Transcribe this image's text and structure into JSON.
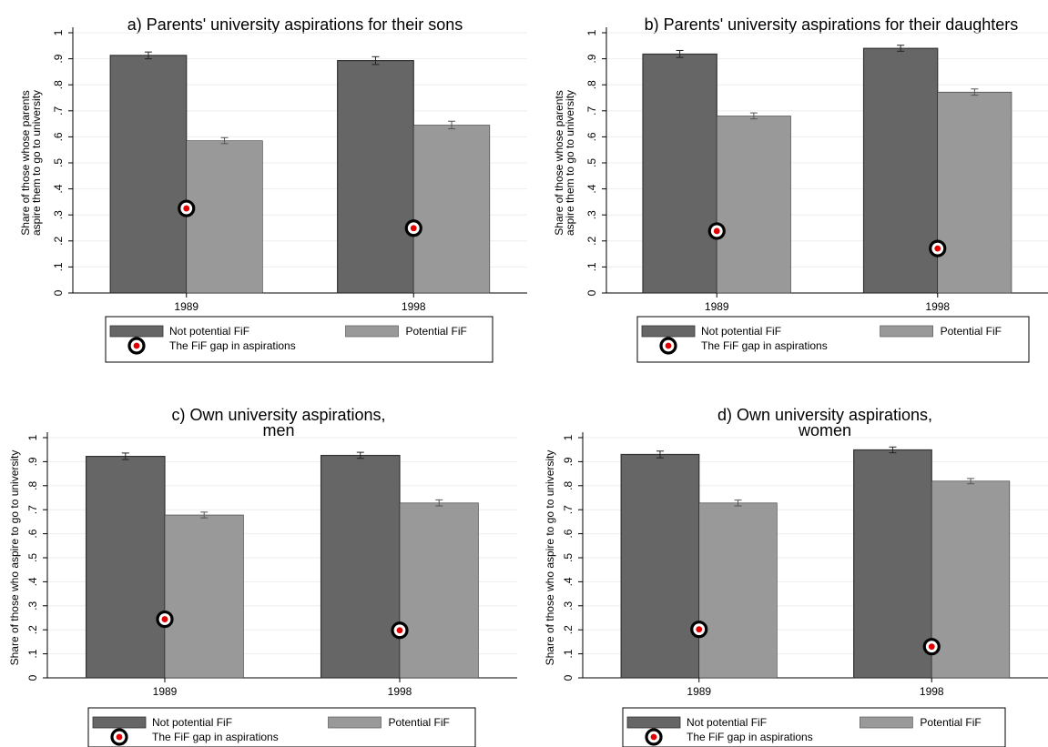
{
  "colors": {
    "not_potential": "#666666",
    "potential": "#999999",
    "gap_ring": "#000000",
    "gap_dot": "#e00000",
    "grid": "#eeeeee"
  },
  "legend": {
    "not_potential": "Not potential FiF",
    "potential": "Potential FiF",
    "gap": "The FiF gap in aspirations"
  },
  "chart_data": [
    {
      "type": "bar",
      "title": [
        "a) Parents' university aspirations for their sons"
      ],
      "ylabel": [
        "Share of those whose parents",
        "aspire them to go to university"
      ],
      "categories": [
        "1989",
        "1998"
      ],
      "yticks": [
        "0",
        ".1",
        ".2",
        ".3",
        ".4",
        ".5",
        ".6",
        ".7",
        ".8",
        ".9",
        "1"
      ],
      "ylim": [
        0,
        1
      ],
      "series": [
        {
          "name": "Not potential FiF",
          "values": [
            0.913,
            0.893
          ],
          "ci": [
            [
              0.9,
              0.926
            ],
            [
              0.878,
              0.908
            ]
          ]
        },
        {
          "name": "Potential FiF",
          "values": [
            0.585,
            0.645
          ],
          "ci": [
            [
              0.574,
              0.597
            ],
            [
              0.631,
              0.66
            ]
          ]
        }
      ],
      "gap": [
        0.325,
        0.249
      ],
      "legend_position": "bottom",
      "grid": true
    },
    {
      "type": "bar",
      "title": [
        "b) Parents' university aspirations for their daughters"
      ],
      "ylabel": [
        "Share of those whose parents",
        "aspire them to go to university"
      ],
      "categories": [
        "1989",
        "1998"
      ],
      "yticks": [
        "0",
        ".1",
        ".2",
        ".3",
        ".4",
        ".5",
        ".6",
        ".7",
        ".8",
        ".9",
        "1"
      ],
      "ylim": [
        0,
        1
      ],
      "series": [
        {
          "name": "Not potential FiF",
          "values": [
            0.918,
            0.94
          ],
          "ci": [
            [
              0.905,
              0.932
            ],
            [
              0.929,
              0.952
            ]
          ]
        },
        {
          "name": "Potential FiF",
          "values": [
            0.68,
            0.772
          ],
          "ci": [
            [
              0.669,
              0.692
            ],
            [
              0.76,
              0.784
            ]
          ]
        }
      ],
      "gap": [
        0.238,
        0.171
      ],
      "legend_position": "bottom",
      "grid": true
    },
    {
      "type": "bar",
      "title": [
        "c) Own university aspirations,",
        "men"
      ],
      "ylabel": [
        "Share of those who aspire to go to university"
      ],
      "categories": [
        "1989",
        "1998"
      ],
      "yticks": [
        "0",
        ".1",
        ".2",
        ".3",
        ".4",
        ".5",
        ".6",
        ".7",
        ".8",
        ".9",
        "1"
      ],
      "ylim": [
        0,
        1
      ],
      "series": [
        {
          "name": "Not potential FiF",
          "values": [
            0.922,
            0.926
          ],
          "ci": [
            [
              0.909,
              0.936
            ],
            [
              0.914,
              0.939
            ]
          ]
        },
        {
          "name": "Potential FiF",
          "values": [
            0.678,
            0.728
          ],
          "ci": [
            [
              0.666,
              0.69
            ],
            [
              0.716,
              0.741
            ]
          ]
        }
      ],
      "gap": [
        0.244,
        0.198
      ],
      "legend_position": "bottom",
      "grid": true
    },
    {
      "type": "bar",
      "title": [
        "d) Own university aspirations,",
        "women"
      ],
      "ylabel": [
        "Share of those who aspire to go to university"
      ],
      "categories": [
        "1989",
        "1998"
      ],
      "yticks": [
        "0",
        ".1",
        ".2",
        ".3",
        ".4",
        ".5",
        ".6",
        ".7",
        ".8",
        ".9",
        "1"
      ],
      "ylim": [
        0,
        1
      ],
      "series": [
        {
          "name": "Not potential FiF",
          "values": [
            0.93,
            0.949
          ],
          "ci": [
            [
              0.916,
              0.944
            ],
            [
              0.937,
              0.961
            ]
          ]
        },
        {
          "name": "Potential FiF",
          "values": [
            0.728,
            0.819
          ],
          "ci": [
            [
              0.716,
              0.74
            ],
            [
              0.808,
              0.83
            ]
          ]
        }
      ],
      "gap": [
        0.202,
        0.13
      ],
      "legend_position": "bottom",
      "grid": true
    }
  ]
}
